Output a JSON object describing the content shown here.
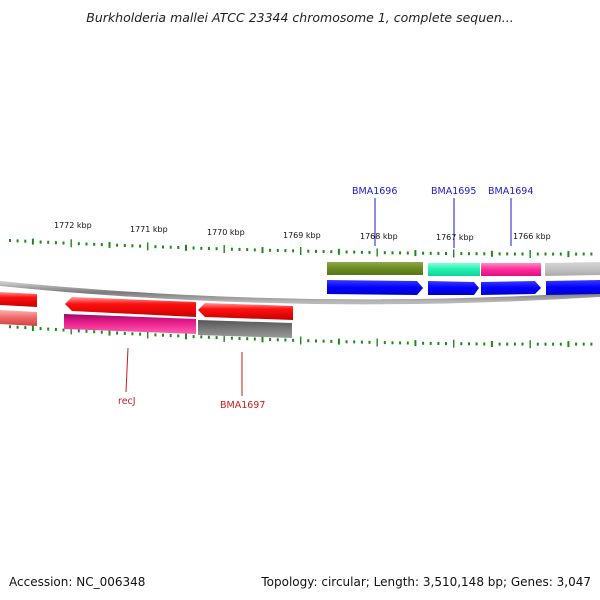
{
  "header": {
    "title": "Burkholderia mallei ATCC 23344 chromosome 1, complete sequen..."
  },
  "footer": {
    "accession": "Accession: NC_006348",
    "summary": "Topology: circular; Length: 3,510,148 bp; Genes: 3,047"
  },
  "colors": {
    "backbone": "#8a8a8a",
    "tick": "#1a8a1a",
    "forward_label": "#1a1acc",
    "reverse_label": "#cc1a1a"
  },
  "scale": {
    "unit": "kbp",
    "labels": [
      "1772 kbp",
      "1771 kbp",
      "1770 kbp",
      "1769 kbp",
      "1768 kbp",
      "1767 kbp",
      "1766 kbp"
    ]
  },
  "features": {
    "forward_labels": [
      "BMA1696",
      "BMA1695",
      "BMA1694"
    ],
    "reverse_labels": [
      "recJ",
      "BMA1697"
    ]
  }
}
